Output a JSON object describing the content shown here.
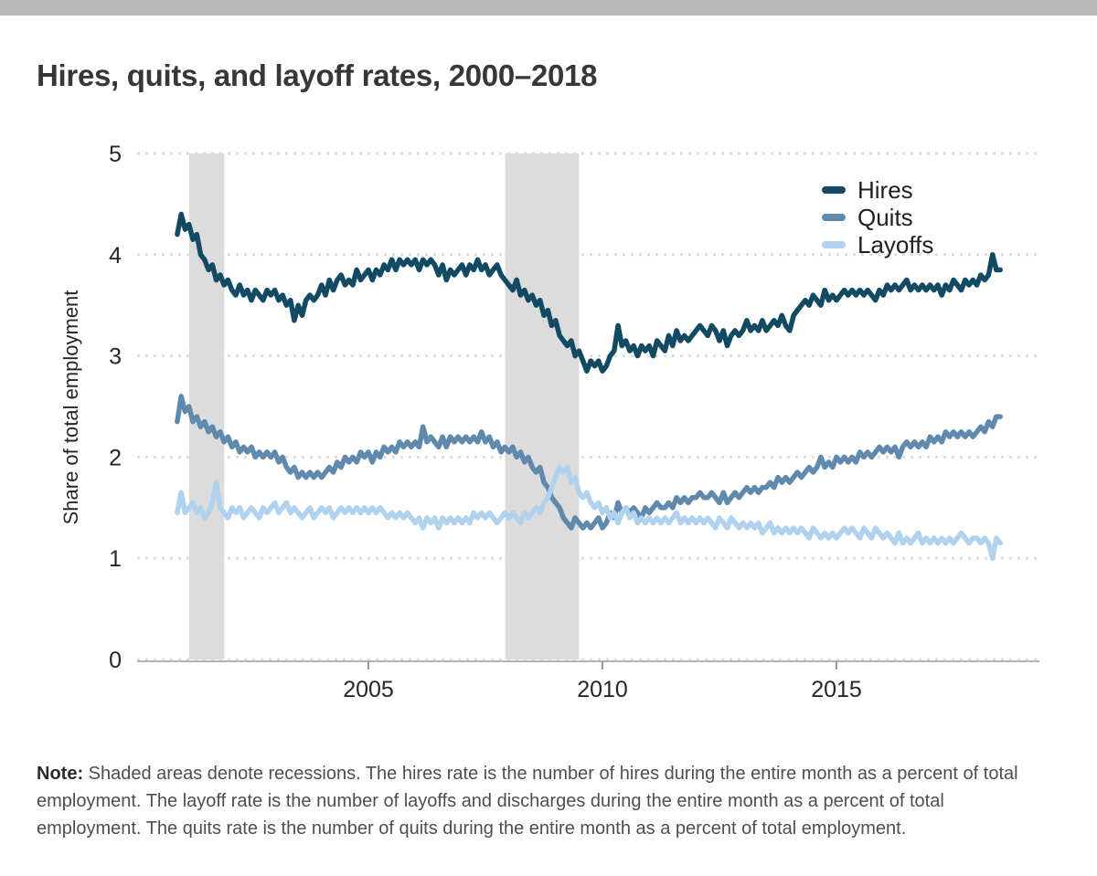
{
  "title": "Hires, quits, and layoff rates, 2000–2018",
  "note": {
    "label": "Note:",
    "text": " Shaded areas denote recessions. The hires rate is the number of hires during the entire month as a percent of total employment. The layoff rate is the number of layoffs and discharges during the entire month as a percent of total employment. The quits rate is the number of quits during the entire month as a percent of total employment."
  },
  "chart_data": {
    "type": "line",
    "title": "Hires, quits, and layoff rates, 2000–2018",
    "xlabel": "",
    "ylabel": "Share of total employment",
    "ylim": [
      0,
      5
    ],
    "y_ticks": [
      0,
      1,
      2,
      3,
      4,
      5
    ],
    "x_ticks": [
      2005,
      2010,
      2015
    ],
    "grid": "dotted horizontal",
    "legend_position": "top-right",
    "x_start": 2000.9167,
    "x_step": "monthly",
    "recessions": [
      [
        2001.17,
        2001.92
      ],
      [
        2007.92,
        2009.5
      ]
    ],
    "colors": {
      "recession_band": "#dcdcdc",
      "grid": "#dedede",
      "axis": "#b3b3b3",
      "tick": "#9a9a9a",
      "top_bar": "#b9b9b9"
    },
    "series": [
      {
        "name": "Hires",
        "color": "#134a63",
        "values": [
          4.2,
          4.4,
          4.25,
          4.3,
          4.15,
          4.2,
          4.0,
          3.95,
          3.85,
          3.9,
          3.75,
          3.8,
          3.7,
          3.75,
          3.65,
          3.6,
          3.7,
          3.6,
          3.65,
          3.55,
          3.65,
          3.6,
          3.55,
          3.65,
          3.6,
          3.65,
          3.55,
          3.6,
          3.5,
          3.55,
          3.35,
          3.5,
          3.4,
          3.55,
          3.6,
          3.55,
          3.6,
          3.7,
          3.6,
          3.75,
          3.65,
          3.75,
          3.8,
          3.7,
          3.75,
          3.7,
          3.85,
          3.75,
          3.8,
          3.85,
          3.75,
          3.85,
          3.8,
          3.9,
          3.85,
          3.95,
          3.85,
          3.95,
          3.9,
          3.95,
          3.9,
          3.95,
          3.85,
          3.95,
          3.9,
          3.95,
          3.9,
          3.8,
          3.9,
          3.75,
          3.85,
          3.8,
          3.85,
          3.9,
          3.8,
          3.9,
          3.85,
          3.95,
          3.85,
          3.9,
          3.8,
          3.85,
          3.9,
          3.8,
          3.75,
          3.7,
          3.65,
          3.75,
          3.6,
          3.65,
          3.55,
          3.6,
          3.5,
          3.55,
          3.4,
          3.45,
          3.3,
          3.35,
          3.2,
          3.15,
          3.1,
          3.15,
          3.0,
          3.05,
          2.95,
          2.85,
          2.95,
          2.9,
          2.95,
          2.85,
          2.9,
          3.0,
          3.05,
          3.3,
          3.1,
          3.15,
          3.05,
          3.1,
          3.0,
          3.1,
          3.05,
          3.1,
          3.0,
          3.15,
          3.1,
          3.05,
          3.2,
          3.1,
          3.25,
          3.15,
          3.2,
          3.15,
          3.2,
          3.25,
          3.3,
          3.25,
          3.2,
          3.3,
          3.25,
          3.15,
          3.25,
          3.1,
          3.2,
          3.25,
          3.2,
          3.25,
          3.35,
          3.25,
          3.3,
          3.25,
          3.35,
          3.25,
          3.3,
          3.35,
          3.3,
          3.4,
          3.3,
          3.25,
          3.4,
          3.45,
          3.5,
          3.55,
          3.5,
          3.6,
          3.55,
          3.5,
          3.65,
          3.55,
          3.6,
          3.55,
          3.6,
          3.65,
          3.6,
          3.65,
          3.6,
          3.65,
          3.6,
          3.65,
          3.6,
          3.55,
          3.65,
          3.6,
          3.7,
          3.65,
          3.7,
          3.65,
          3.7,
          3.75,
          3.65,
          3.7,
          3.65,
          3.7,
          3.65,
          3.7,
          3.65,
          3.7,
          3.6,
          3.7,
          3.65,
          3.75,
          3.7,
          3.65,
          3.75,
          3.7,
          3.75,
          3.7,
          3.8,
          3.75,
          3.8,
          4.0,
          3.85,
          3.85
        ]
      },
      {
        "name": "Quits",
        "color": "#6089ae",
        "values": [
          2.35,
          2.6,
          2.45,
          2.5,
          2.35,
          2.4,
          2.3,
          2.35,
          2.25,
          2.3,
          2.2,
          2.25,
          2.15,
          2.2,
          2.1,
          2.15,
          2.05,
          2.1,
          2.05,
          2.1,
          2.0,
          2.05,
          2.0,
          2.05,
          2.0,
          2.05,
          1.95,
          2.0,
          1.9,
          1.85,
          1.9,
          1.8,
          1.85,
          1.8,
          1.85,
          1.8,
          1.85,
          1.8,
          1.85,
          1.9,
          1.85,
          1.95,
          1.9,
          2.0,
          1.95,
          2.0,
          1.95,
          2.05,
          2.0,
          2.05,
          1.95,
          2.05,
          2.0,
          2.1,
          2.05,
          2.1,
          2.05,
          2.15,
          2.1,
          2.15,
          2.1,
          2.15,
          2.1,
          2.3,
          2.15,
          2.2,
          2.15,
          2.1,
          2.2,
          2.1,
          2.2,
          2.15,
          2.2,
          2.15,
          2.2,
          2.15,
          2.2,
          2.15,
          2.25,
          2.15,
          2.2,
          2.1,
          2.15,
          2.05,
          2.1,
          2.05,
          2.1,
          2.0,
          2.05,
          1.95,
          2.0,
          1.9,
          1.85,
          1.9,
          1.75,
          1.7,
          1.6,
          1.55,
          1.5,
          1.4,
          1.35,
          1.3,
          1.4,
          1.35,
          1.3,
          1.35,
          1.3,
          1.35,
          1.4,
          1.3,
          1.35,
          1.45,
          1.4,
          1.55,
          1.45,
          1.5,
          1.45,
          1.5,
          1.45,
          1.4,
          1.5,
          1.45,
          1.5,
          1.55,
          1.5,
          1.5,
          1.55,
          1.5,
          1.6,
          1.55,
          1.6,
          1.55,
          1.6,
          1.6,
          1.65,
          1.6,
          1.6,
          1.65,
          1.6,
          1.55,
          1.65,
          1.55,
          1.6,
          1.65,
          1.6,
          1.65,
          1.7,
          1.65,
          1.7,
          1.65,
          1.7,
          1.7,
          1.75,
          1.7,
          1.8,
          1.75,
          1.8,
          1.75,
          1.8,
          1.85,
          1.8,
          1.85,
          1.9,
          1.85,
          1.9,
          2.0,
          1.9,
          1.95,
          1.9,
          2.0,
          1.95,
          2.0,
          1.95,
          2.0,
          1.95,
          2.05,
          2.0,
          2.05,
          2.0,
          2.05,
          2.1,
          2.05,
          2.1,
          2.05,
          2.1,
          2.0,
          2.1,
          2.15,
          2.1,
          2.15,
          2.1,
          2.15,
          2.1,
          2.2,
          2.15,
          2.2,
          2.15,
          2.25,
          2.2,
          2.25,
          2.2,
          2.25,
          2.2,
          2.25,
          2.2,
          2.25,
          2.3,
          2.25,
          2.35,
          2.3,
          2.4,
          2.4
        ]
      },
      {
        "name": "Layoffs",
        "color": "#b0d2ee",
        "values": [
          1.45,
          1.65,
          1.45,
          1.5,
          1.55,
          1.45,
          1.5,
          1.4,
          1.45,
          1.55,
          1.75,
          1.5,
          1.45,
          1.4,
          1.5,
          1.45,
          1.5,
          1.4,
          1.45,
          1.5,
          1.45,
          1.4,
          1.5,
          1.45,
          1.5,
          1.55,
          1.45,
          1.5,
          1.55,
          1.45,
          1.5,
          1.45,
          1.4,
          1.45,
          1.5,
          1.4,
          1.45,
          1.5,
          1.45,
          1.5,
          1.4,
          1.45,
          1.5,
          1.45,
          1.5,
          1.45,
          1.5,
          1.45,
          1.5,
          1.45,
          1.5,
          1.45,
          1.5,
          1.45,
          1.4,
          1.45,
          1.4,
          1.45,
          1.4,
          1.45,
          1.4,
          1.35,
          1.4,
          1.3,
          1.4,
          1.35,
          1.4,
          1.3,
          1.4,
          1.35,
          1.4,
          1.35,
          1.4,
          1.35,
          1.4,
          1.35,
          1.45,
          1.4,
          1.45,
          1.4,
          1.45,
          1.4,
          1.35,
          1.4,
          1.45,
          1.4,
          1.45,
          1.4,
          1.35,
          1.45,
          1.4,
          1.45,
          1.5,
          1.45,
          1.55,
          1.6,
          1.7,
          1.8,
          1.9,
          1.85,
          1.9,
          1.75,
          1.8,
          1.65,
          1.6,
          1.65,
          1.55,
          1.5,
          1.55,
          1.45,
          1.5,
          1.4,
          1.45,
          1.35,
          1.45,
          1.5,
          1.4,
          1.45,
          1.35,
          1.4,
          1.35,
          1.4,
          1.35,
          1.4,
          1.35,
          1.4,
          1.35,
          1.4,
          1.45,
          1.35,
          1.4,
          1.35,
          1.4,
          1.35,
          1.4,
          1.35,
          1.4,
          1.35,
          1.3,
          1.4,
          1.35,
          1.3,
          1.4,
          1.35,
          1.3,
          1.35,
          1.3,
          1.35,
          1.3,
          1.35,
          1.25,
          1.3,
          1.35,
          1.25,
          1.3,
          1.25,
          1.3,
          1.25,
          1.3,
          1.25,
          1.3,
          1.25,
          1.2,
          1.3,
          1.25,
          1.2,
          1.25,
          1.2,
          1.25,
          1.2,
          1.25,
          1.3,
          1.25,
          1.3,
          1.25,
          1.2,
          1.3,
          1.25,
          1.2,
          1.3,
          1.25,
          1.2,
          1.25,
          1.2,
          1.15,
          1.25,
          1.15,
          1.2,
          1.15,
          1.2,
          1.25,
          1.15,
          1.2,
          1.15,
          1.2,
          1.15,
          1.2,
          1.15,
          1.2,
          1.15,
          1.2,
          1.25,
          1.2,
          1.15,
          1.2,
          1.2,
          1.15,
          1.2,
          1.15,
          1.0,
          1.2,
          1.15
        ]
      }
    ]
  }
}
